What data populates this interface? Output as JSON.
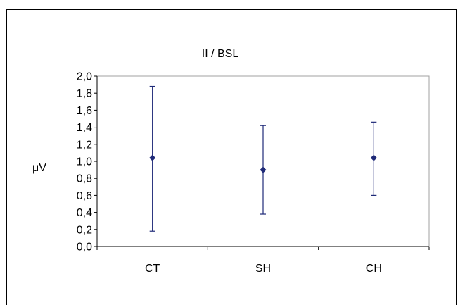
{
  "chart_data": {
    "type": "scatter",
    "title": "II / BSL",
    "xlabel": "",
    "ylabel": "μV",
    "categories": [
      "CT",
      "SH",
      "CH"
    ],
    "ylim": [
      0,
      2.0
    ],
    "yticks": [
      "0,0",
      "0,2",
      "0,4",
      "0,6",
      "0,8",
      "1,0",
      "1,2",
      "1,4",
      "1,6",
      "1,8",
      "2,0"
    ],
    "series": [
      {
        "values": [
          1.04,
          0.9,
          1.04
        ],
        "error_low": [
          0.18,
          0.38,
          0.6
        ],
        "error_high": [
          1.88,
          1.42,
          1.46
        ]
      }
    ],
    "grid": false,
    "legend": "none",
    "colors": {
      "marker": "#1f2a78",
      "axis": "#000000",
      "plot_border": "#a0a0a0"
    }
  }
}
